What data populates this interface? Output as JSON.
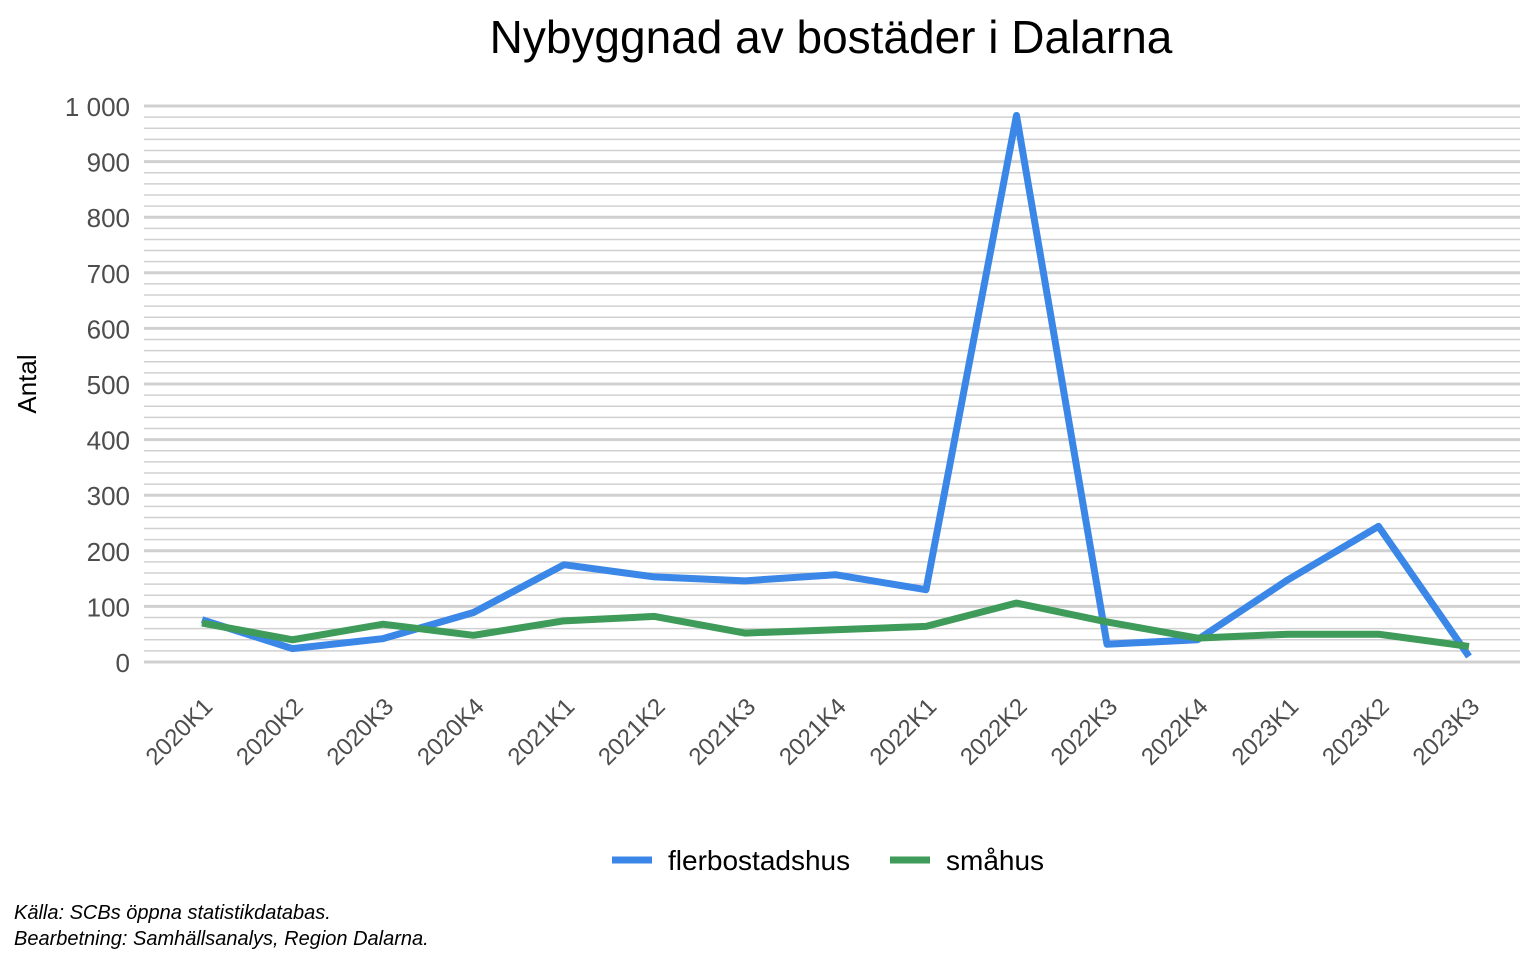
{
  "chart_data": {
    "type": "line",
    "title": "Nybyggnad av bostäder i Dalarna",
    "xlabel": "",
    "ylabel": "Antal",
    "categories": [
      "2020K1",
      "2020K2",
      "2020K3",
      "2020K4",
      "2021K1",
      "2021K2",
      "2021K3",
      "2021K4",
      "2022K1",
      "2022K2",
      "2022K3",
      "2022K4",
      "2023K1",
      "2023K2",
      "2023K3"
    ],
    "series": [
      {
        "name": "flerbostadshus",
        "color": "#3a87e8",
        "values": [
          76,
          24,
          42,
          89,
          175,
          153,
          146,
          157,
          130,
          983,
          32,
          40,
          148,
          244,
          10
        ]
      },
      {
        "name": "småhus",
        "color": "#3f9b5a",
        "values": [
          70,
          40,
          68,
          48,
          74,
          82,
          52,
          58,
          64,
          106,
          72,
          43,
          50,
          50,
          28
        ]
      }
    ],
    "ylim": [
      0,
      1000
    ],
    "yticks": [
      0,
      100,
      200,
      300,
      400,
      500,
      600,
      700,
      800,
      900,
      1000
    ],
    "ytick_labels": [
      "0",
      "100",
      "200",
      "300",
      "400",
      "500",
      "600",
      "700",
      "800",
      "900",
      "1 000"
    ],
    "grid": true,
    "minor_grid_step": 20,
    "legend_position": "bottom"
  },
  "caption": {
    "source": "Källa: SCBs öppna statistikdatabas.",
    "processing": "Bearbetning: Samhällsanalys, Region Dalarna."
  }
}
